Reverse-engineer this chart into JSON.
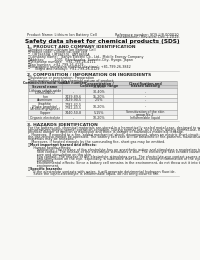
{
  "bg_color": "#f8f8f5",
  "header_top_left": "Product Name: Lithium Ion Battery Cell",
  "header_top_right_line1": "Reference number: SDS-LIB-000010",
  "header_top_right_line2": "Established / Revision: Dec.1.2019",
  "title": "Safety data sheet for chemical products (SDS)",
  "section1_title": "1. PRODUCT AND COMPANY IDENTIFICATION",
  "section1_lines": [
    "・Product name: Lithium Ion Battery Cell",
    "・Product code: Cylindrical-type cell",
    "    UR18650A, UR18650L, UR18650A",
    "・Company name:   Sanyo Electric Co., Ltd., Mobile Energy Company",
    "・Address:         2001  Kamikosaka, Sumoto-City, Hyogo, Japan",
    "・Telephone number:   +81-799-26-4111",
    "・Fax number:  +81-799-26-4129",
    "・Emergency telephone number (daytime): +81-799-26-3842",
    "      (Night and holiday): +81-799-26-4129"
  ],
  "section2_title": "2. COMPOSITION / INFORMATION ON INGREDIENTS",
  "section2_intro": "・Substance or preparation: Preparation",
  "section2_sub": "・Information about the chemical nature of product:",
  "table_col_names": [
    "Common/chemical name",
    "CAS number",
    "Concentration /\nConcentration range",
    "Classification and\nhazard labeling"
  ],
  "table_sub_headers": [
    "Several name",
    "",
    "30-40%",
    ""
  ],
  "table_rows": [
    [
      "Lithium cobalt oxide\n(LiMnCoNiO₂)",
      ".",
      "30-40%",
      "."
    ],
    [
      "Iron",
      "7439-89-6",
      "15-20%",
      "."
    ],
    [
      "Aluminum",
      "7429-90-5",
      "2-5%",
      "."
    ],
    [
      "Graphite\n(Flake graphite)\n(Artificial graphite)",
      "7782-42-5\n7782-43-5",
      "10-20%",
      "."
    ],
    [
      "Copper",
      "7440-50-8",
      "5-15%",
      "Sensitization of the skin\ngroup No.2"
    ],
    [
      "Organic electrolyte",
      ".",
      "10-20%",
      "Inflammable liquid"
    ]
  ],
  "section3_title": "3. HAZARDS IDENTIFICATION",
  "section3_para": [
    "For the battery cell, chemical materials are stored in a hermetically sealed metal case, designed to withstand",
    "temperatures during normal operation-condition. During normal use, as a result, during normal-use, there is no",
    "physical danger of ignition or explosion and there is danger of hazardous materials leakage.",
    "   However, if exposed to a fire, added mechanical shock, decomposed, when an electric short-circuit may cause",
    "the gas release cannot be operated. The battery cell case will be breached of fire-patterns, hazardous",
    "materials may be released.",
    "   Moreover, if heated strongly by the surrounding fire, short gas may be emitted."
  ],
  "section3_hazard_title": "・Most important hazard and effects:",
  "section3_human_title": "   Human health effects:",
  "section3_human_lines": [
    "      Inhalation: The release of the electrolyte has an anesthetic action and stimulates a respiratory tract.",
    "      Skin contact: The release of the electrolyte stimulates a skin. The electrolyte skin contact causes a",
    "      sore and stimulation on the skin.",
    "      Eye contact: The release of the electrolyte stimulates eyes. The electrolyte eye contact causes a sore",
    "      and stimulation on the eye. Especially, a substance that causes a strong inflammation of the eye is",
    "      contained.",
    "      Environmental effects: Since a battery cell remains in the environment, do not throw out it into the",
    "      environment."
  ],
  "section3_specific_title": "・Specific hazards:",
  "section3_specific_lines": [
    "   If the electrolyte contacts with water, it will generate detrimental hydrogen fluoride.",
    "   Since the liquid-electrolyte is inflammable liquid, do not bring close to fire."
  ],
  "line_color": "#bbbbbb",
  "text_color": "#2a2a2a",
  "title_color": "#111111",
  "table_header_bg": "#d0d0d0",
  "table_alt_bg": "#ebebeb",
  "table_border": "#999999"
}
